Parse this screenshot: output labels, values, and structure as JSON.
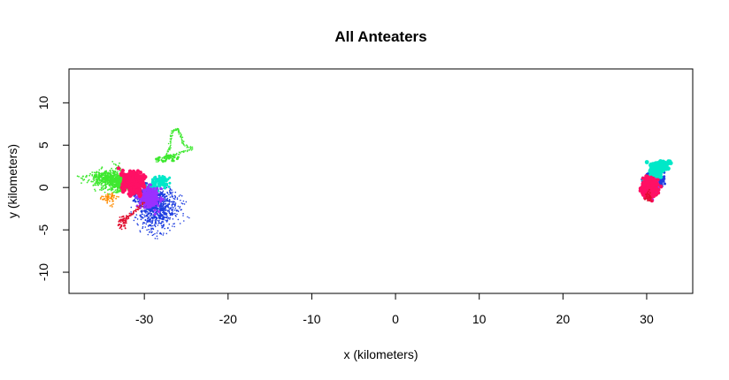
{
  "chart_data": {
    "type": "scatter",
    "title": "All Anteaters",
    "xlabel": "x (kilometers)",
    "ylabel": "y (kilometers)",
    "xlim": [
      -39,
      35.5
    ],
    "ylim": [
      -12.5,
      14
    ],
    "xticks": [
      -30,
      -20,
      -10,
      0,
      10,
      20,
      30
    ],
    "yticks": [
      -10,
      -5,
      0,
      5,
      10
    ],
    "grid": false,
    "legend": "none",
    "clusters": [
      {
        "color": "#FF8C00",
        "cx": -33.8,
        "cy": -1.3,
        "sx": 0.6,
        "sy": 0.4,
        "n": 60,
        "r": 0.9
      },
      {
        "color": "#FF8C00",
        "cx": 30.2,
        "cy": -0.9,
        "sx": 0.6,
        "sy": 0.4,
        "n": 40,
        "r": 0.9
      },
      {
        "color": "#1F3FE0",
        "cx": -28.3,
        "cy": -2.6,
        "sx": 1.1,
        "sy": 1.2,
        "n": 700,
        "r": 0.8
      },
      {
        "color": "#1F3FE0",
        "cx": -29.2,
        "cy": -1.4,
        "sx": 0.7,
        "sy": 0.8,
        "n": 300,
        "r": 1.2
      },
      {
        "color": "#1F3FE0",
        "cx": 31.0,
        "cy": 0.9,
        "sx": 0.55,
        "sy": 0.5,
        "n": 200,
        "r": 1.5
      },
      {
        "color": "#00E8C8",
        "cx": -28.5,
        "cy": 0.4,
        "sx": 0.7,
        "sy": 0.4,
        "n": 120,
        "r": 1.5
      },
      {
        "color": "#00E8C8",
        "cx": 31.0,
        "cy": 2.2,
        "sx": 0.55,
        "sy": 0.35,
        "n": 180,
        "r": 2.4
      },
      {
        "color": "#00E8C8",
        "cx": 30.6,
        "cy": 1.0,
        "sx": 0.4,
        "sy": 0.3,
        "n": 60,
        "r": 2.0
      },
      {
        "color": "#3FE830",
        "cx": -34.2,
        "cy": 1.0,
        "sx": 1.1,
        "sy": 0.6,
        "n": 700,
        "r": 0.9
      },
      {
        "color": "#3FE830",
        "cx": -32.3,
        "cy": 0.8,
        "sx": 0.5,
        "sy": 0.5,
        "n": 200,
        "r": 1.3
      },
      {
        "color": "#3FE830",
        "cx": -27.5,
        "cy": 3.6,
        "sx": 0.5,
        "sy": 0.3,
        "n": 30,
        "r": 1.4
      },
      {
        "color": "#9B30FF",
        "cx": -29.2,
        "cy": -1.2,
        "sx": 0.6,
        "sy": 0.5,
        "n": 260,
        "r": 1.6
      },
      {
        "color": "#9B30FF",
        "cx": 30.4,
        "cy": -0.2,
        "sx": 0.5,
        "sy": 0.5,
        "n": 150,
        "r": 1.7
      },
      {
        "color": "#FF1065",
        "cx": -31.4,
        "cy": 0.6,
        "sx": 0.55,
        "sy": 0.55,
        "n": 450,
        "r": 2.2
      },
      {
        "color": "#FF1065",
        "cx": 30.3,
        "cy": -0.1,
        "sx": 0.45,
        "sy": 0.55,
        "n": 400,
        "r": 2.0
      },
      {
        "color": "#E01030",
        "cx": -32.6,
        "cy": -3.8,
        "sx": 0.4,
        "sy": 0.5,
        "n": 50,
        "r": 0.9
      },
      {
        "color": "#E01030",
        "cx": 30.2,
        "cy": -1.3,
        "sx": 0.3,
        "sy": 0.3,
        "n": 40,
        "r": 0.9
      }
    ],
    "paths": [
      {
        "color": "#3FE830",
        "r": 0.8,
        "points": [
          [
            -28.5,
            3.0
          ],
          [
            -27.5,
            3.6
          ],
          [
            -27.0,
            4.5
          ],
          [
            -26.9,
            5.8
          ],
          [
            -26.6,
            6.7
          ],
          [
            -26.0,
            6.9
          ],
          [
            -25.6,
            6.0
          ],
          [
            -25.4,
            5.1
          ],
          [
            -24.2,
            4.6
          ],
          [
            -25.5,
            4.2
          ],
          [
            -26.5,
            3.8
          ],
          [
            -27.2,
            3.4
          ]
        ]
      },
      {
        "color": "#E01030",
        "r": 0.9,
        "points": [
          [
            -32.4,
            -4.5
          ],
          [
            -32.2,
            -3.6
          ],
          [
            -31.5,
            -3.2
          ],
          [
            -30.8,
            -2.5
          ],
          [
            -30.0,
            -1.8
          ]
        ]
      }
    ]
  }
}
